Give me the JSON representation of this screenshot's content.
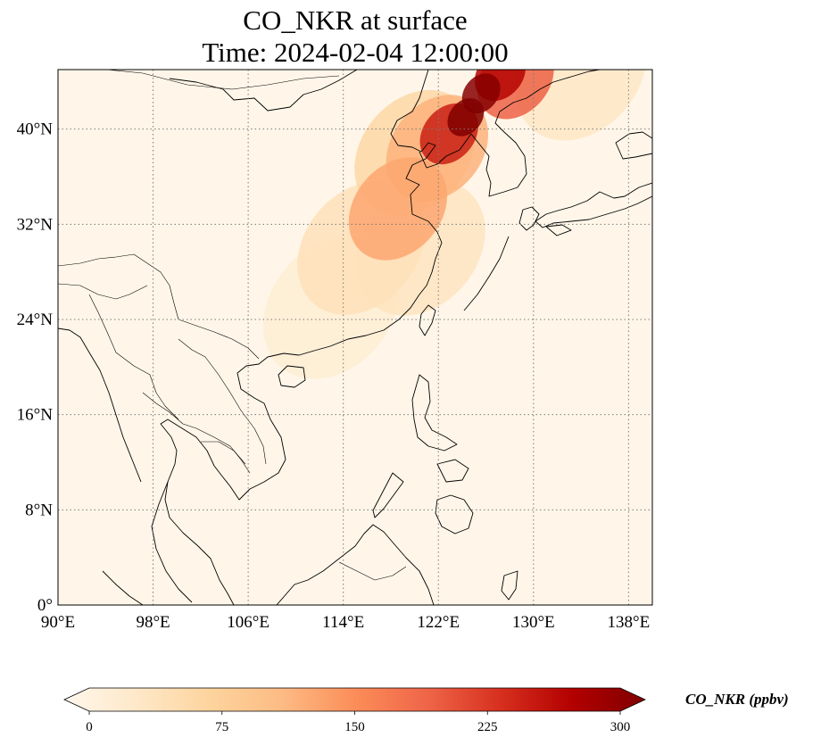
{
  "title": {
    "line1": "CO_NKR at surface",
    "line2": "Time: 2024-02-04 12:00:00"
  },
  "map": {
    "projection": "PlateCarree",
    "lon_range": [
      90,
      140
    ],
    "lat_range": [
      0,
      45
    ],
    "gridlines": "dotted gray",
    "x_ticks": [
      {
        "value": 90,
        "label": "90°E"
      },
      {
        "value": 98,
        "label": "98°E"
      },
      {
        "value": 106,
        "label": "106°E"
      },
      {
        "value": 114,
        "label": "114°E"
      },
      {
        "value": 122,
        "label": "122°E"
      },
      {
        "value": 130,
        "label": "130°E"
      },
      {
        "value": 138,
        "label": "138°E"
      }
    ],
    "y_ticks": [
      {
        "value": 0,
        "label": "0°"
      },
      {
        "value": 8,
        "label": "8°N"
      },
      {
        "value": 16,
        "label": "16°N"
      },
      {
        "value": 24,
        "label": "24°N"
      },
      {
        "value": 32,
        "label": "32°N"
      },
      {
        "value": 40,
        "label": "40°N"
      }
    ],
    "plumes": [
      {
        "lon": 124.3,
        "lat": 41.0,
        "value": 300
      },
      {
        "lon": 125.6,
        "lat": 43.0,
        "value": 295
      },
      {
        "lon": 127.2,
        "lat": 44.6,
        "value": 260
      },
      {
        "lon": 122.9,
        "lat": 39.6,
        "value": 240
      },
      {
        "lon": 128.5,
        "lat": 44.2,
        "value": 190
      },
      {
        "lon": 121.9,
        "lat": 38.4,
        "value": 120
      },
      {
        "lon": 118.6,
        "lat": 33.3,
        "value": 130
      },
      {
        "lon": 120.0,
        "lat": 38.0,
        "value": 70
      },
      {
        "lon": 115.5,
        "lat": 30.0,
        "value": 50
      },
      {
        "lon": 120.5,
        "lat": 30.0,
        "value": 45
      },
      {
        "lon": 113.0,
        "lat": 25.0,
        "value": 25
      },
      {
        "lon": 134.0,
        "lat": 44.8,
        "value": 40
      }
    ],
    "colors": {
      "background": "#fff6e9",
      "coast": "#000000",
      "grid": "#7a7a7a"
    }
  },
  "colorbar": {
    "label": "CO_NKR (ppbv)",
    "min": 0,
    "max": 300,
    "extend": "both",
    "ticks": [
      {
        "value": 0,
        "label": "0"
      },
      {
        "value": 75,
        "label": "75"
      },
      {
        "value": 150,
        "label": "150"
      },
      {
        "value": 225,
        "label": "225"
      },
      {
        "value": 300,
        "label": "300"
      }
    ],
    "colormap": "OrRd",
    "stops": [
      "#fff7ec",
      "#fee8c8",
      "#fdd49e",
      "#fdbb84",
      "#fc8d59",
      "#ef6548",
      "#d7301f",
      "#b30000",
      "#7f0000"
    ]
  }
}
